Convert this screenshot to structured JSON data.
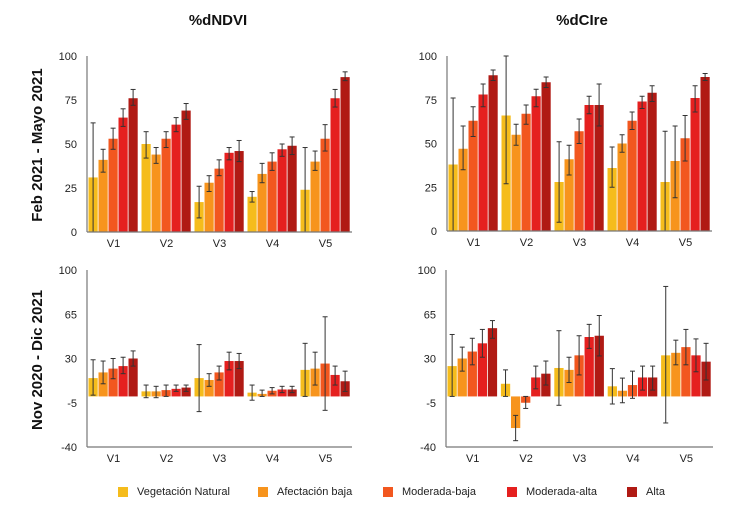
{
  "legend": [
    {
      "label": "Vegetación Natural",
      "color": "#F5BC1C"
    },
    {
      "label": "Afectación baja",
      "color": "#F7941D"
    },
    {
      "label": "Moderada-baja",
      "color": "#F2571F"
    },
    {
      "label": "Moderada-alta",
      "color": "#E5201F"
    },
    {
      "label": "Alta",
      "color": "#B01A14"
    }
  ],
  "column_titles": [
    "%dNDVI",
    "%dCIre"
  ],
  "row_labels": [
    "Feb 2021 - Mayo 2021",
    "Nov 2020 - Dic 2021"
  ],
  "chart_data": [
    {
      "type": "bar",
      "title": "%dNDVI",
      "ylabel": "Feb 2021 - Mayo 2021",
      "xlabel": "",
      "categories": [
        "V1",
        "V2",
        "V3",
        "V4",
        "V5"
      ],
      "ylim": [
        0,
        100
      ],
      "yticks": [
        0,
        25,
        50,
        75,
        100
      ],
      "legend_position": "bottom",
      "grid": false,
      "series": [
        {
          "name": "Vegetación Natural",
          "values": [
            31,
            50,
            17,
            20,
            24
          ],
          "err_high": [
            62,
            57,
            26,
            23,
            48
          ],
          "err_low": [
            0,
            42,
            8,
            17,
            0
          ]
        },
        {
          "name": "Afectación baja",
          "values": [
            41,
            44,
            28,
            33,
            40
          ],
          "err_high": [
            47,
            48,
            32,
            39,
            46
          ],
          "err_low": [
            34,
            39,
            23,
            28,
            35
          ]
        },
        {
          "name": "Moderada-baja",
          "values": [
            53,
            53,
            36,
            40,
            53
          ],
          "err_high": [
            59,
            57,
            41,
            45,
            61
          ],
          "err_low": [
            47,
            48,
            32,
            35,
            46
          ]
        },
        {
          "name": "Moderada-alta",
          "values": [
            65,
            61,
            45,
            47,
            76
          ],
          "err_high": [
            70,
            65,
            48,
            50,
            81
          ],
          "err_low": [
            60,
            57,
            41,
            43,
            71
          ]
        },
        {
          "name": "Alta",
          "values": [
            76,
            69,
            46,
            49,
            88
          ],
          "err_high": [
            81,
            73,
            52,
            54,
            91
          ],
          "err_low": [
            72,
            64,
            40,
            44,
            86
          ]
        }
      ]
    },
    {
      "type": "bar",
      "title": "%dCIre",
      "ylabel": "Feb 2021 - Mayo 2021",
      "xlabel": "",
      "categories": [
        "V1",
        "V2",
        "V3",
        "V4",
        "V5"
      ],
      "ylim": [
        0,
        100
      ],
      "yticks": [
        0,
        25,
        50,
        75,
        100
      ],
      "legend_position": "bottom",
      "grid": false,
      "series": [
        {
          "name": "Vegetación Natural",
          "values": [
            38,
            66,
            28,
            36,
            28
          ],
          "err_high": [
            76,
            100,
            51,
            48,
            57
          ],
          "err_low": [
            0,
            27,
            5,
            25,
            0
          ]
        },
        {
          "name": "Afectación baja",
          "values": [
            47,
            55,
            41,
            50,
            40
          ],
          "err_high": [
            60,
            61,
            49,
            55,
            60
          ],
          "err_low": [
            35,
            49,
            32,
            45,
            19
          ]
        },
        {
          "name": "Moderada-baja",
          "values": [
            63,
            67,
            57,
            63,
            53
          ],
          "err_high": [
            71,
            72,
            64,
            68,
            66
          ],
          "err_low": [
            54,
            61,
            50,
            58,
            40
          ]
        },
        {
          "name": "Moderada-alta",
          "values": [
            78,
            77,
            72,
            74,
            76
          ],
          "err_high": [
            84,
            81,
            77,
            77,
            83
          ],
          "err_low": [
            71,
            71,
            67,
            70,
            68
          ]
        },
        {
          "name": "Alta",
          "values": [
            89,
            85,
            72,
            79,
            88
          ],
          "err_high": [
            92,
            88,
            84,
            83,
            90
          ],
          "err_low": [
            86,
            82,
            60,
            74,
            86
          ]
        }
      ]
    },
    {
      "type": "bar",
      "title": "%dNDVI",
      "ylabel": "Nov 2020 - Dic 2021",
      "xlabel": "",
      "categories": [
        "V1",
        "V2",
        "V3",
        "V4",
        "V5"
      ],
      "ylim": [
        -40,
        100
      ],
      "yticks": [
        -40,
        -5,
        30,
        65,
        100
      ],
      "legend_position": "bottom",
      "grid": false,
      "series": [
        {
          "name": "Vegetación Natural",
          "values": [
            14.5,
            4,
            14.5,
            3,
            21
          ],
          "err_high": [
            29,
            9,
            41,
            9,
            42
          ],
          "err_low": [
            1,
            -1,
            -12,
            -3,
            0
          ]
        },
        {
          "name": "Afectación baja",
          "values": [
            19,
            4,
            13,
            2,
            22
          ],
          "err_high": [
            28,
            8,
            18,
            5,
            35
          ],
          "err_low": [
            10,
            -1,
            8,
            0,
            9
          ]
        },
        {
          "name": "Moderada-baja",
          "values": [
            22,
            5,
            19,
            4.5,
            26
          ],
          "err_high": [
            30,
            9,
            24,
            7,
            63
          ],
          "err_low": [
            14,
            0,
            13,
            2,
            -11
          ]
        },
        {
          "name": "Moderada-alta",
          "values": [
            24,
            6,
            28,
            5.5,
            17
          ],
          "err_high": [
            31,
            9,
            35,
            8,
            24
          ],
          "err_low": [
            18,
            4,
            21,
            3,
            9
          ]
        },
        {
          "name": "Alta",
          "values": [
            30,
            7,
            28,
            5.5,
            12
          ],
          "err_high": [
            36,
            9,
            34,
            8,
            20
          ],
          "err_low": [
            24,
            4,
            22,
            3,
            4
          ]
        }
      ]
    },
    {
      "type": "bar",
      "title": "%dCIre",
      "ylabel": "Nov 2020 - Dic 2021",
      "xlabel": "",
      "categories": [
        "V1",
        "V2",
        "V3",
        "V4",
        "V5"
      ],
      "ylim": [
        -40,
        100
      ],
      "yticks": [
        -40,
        -5,
        30,
        65,
        100
      ],
      "legend_position": "bottom",
      "grid": false,
      "series": [
        {
          "name": "Vegetación Natural",
          "values": [
            24,
            10,
            22.5,
            8,
            32.5
          ],
          "err_high": [
            49,
            21,
            52,
            22,
            87
          ],
          "err_low": [
            0,
            0,
            -7,
            -6,
            -21
          ]
        },
        {
          "name": "Afectación baja",
          "values": [
            30,
            -25,
            21,
            4.5,
            34.5
          ],
          "err_high": [
            39,
            -15,
            31,
            14.5,
            44.5
          ],
          "err_low": [
            20,
            -35,
            11,
            -5,
            25
          ]
        },
        {
          "name": "Moderada-baja",
          "values": [
            35.5,
            -5,
            32.5,
            9,
            39
          ],
          "err_high": [
            46,
            0,
            48,
            20,
            53
          ],
          "err_low": [
            25,
            -9.5,
            17,
            -1.5,
            25
          ]
        },
        {
          "name": "Moderada-alta",
          "values": [
            42,
            15,
            47,
            15,
            32.5
          ],
          "err_high": [
            53,
            24,
            57,
            24,
            45.5
          ],
          "err_low": [
            31,
            6,
            38,
            5,
            19.5
          ]
        },
        {
          "name": "Alta",
          "values": [
            54,
            18,
            48,
            15,
            27.5
          ],
          "err_high": [
            60,
            28,
            64,
            24,
            42
          ],
          "err_low": [
            46,
            9,
            32,
            5,
            13
          ]
        }
      ]
    }
  ]
}
